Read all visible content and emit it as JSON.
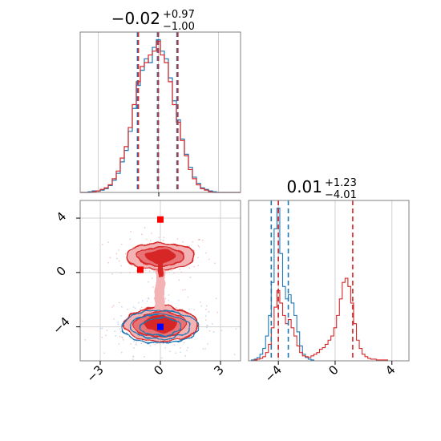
{
  "colors": {
    "blue": "#1f77b4",
    "red": "#d62728",
    "red_light": "#f0a3a4",
    "red_mid": "#e36163",
    "red_dark": "#d62728",
    "blue_light": "#c6dbef",
    "grid": "#d0d0d0",
    "frame": "#808080"
  },
  "chart_data": {
    "type": "corner",
    "grid": true,
    "panels": [
      {
        "id": "marginal-x",
        "type": "histogram",
        "title": {
          "value": "−0.02",
          "upper": "+0.97",
          "lower": "−1.00"
        },
        "xlim": [
          -3.9,
          4.1
        ],
        "series": [
          {
            "name": "",
            "color": "#1f77b4",
            "bin_start": -3.9,
            "bin_width": 0.2,
            "values": [
              0,
              0,
              1,
              2,
              2,
              3,
              5,
              9,
              16,
              25,
              40,
              55,
              80,
              110,
              140,
              160,
              175,
              170,
              190,
              200,
              185,
              175,
              150,
              120,
              95,
              70,
              50,
              33,
              20,
              12,
              6,
              4,
              2,
              1,
              0,
              0,
              0,
              0,
              0,
              0
            ]
          },
          {
            "name": "",
            "color": "#d62728",
            "bin_start": -3.9,
            "bin_width": 0.2,
            "values": [
              0,
              0,
              0,
              1,
              2,
              4,
              6,
              10,
              18,
              28,
              45,
              60,
              85,
              115,
              145,
              165,
              170,
              180,
              185,
              198,
              180,
              170,
              145,
              115,
              92,
              68,
              48,
              30,
              18,
              10,
              5,
              3,
              1,
              0,
              0,
              0,
              0,
              0,
              0,
              0
            ]
          }
        ],
        "quantiles": {
          "values": [
            -1.02,
            -0.02,
            0.95
          ],
          "colors": [
            "#1f77b4",
            "#d62728"
          ]
        }
      },
      {
        "id": "marginal-y",
        "type": "histogram",
        "title": {
          "value": "0.01",
          "upper": "+1.23",
          "lower": "−4.01"
        },
        "xlim": [
          -6.1,
          5.2
        ],
        "xticks": [
          -4,
          0,
          4
        ],
        "xticklabels": [
          "−4",
          "0",
          "4"
        ],
        "series": [
          {
            "name": "",
            "color": "#1f77b4",
            "bin_start": -6.1,
            "bin_width": 0.2,
            "values": [
              0,
              1,
              2,
              4,
              8,
              15,
              30,
              55,
              95,
              160,
              185,
              130,
              90,
              75,
              80,
              70,
              55,
              35,
              18,
              8,
              4,
              2,
              1,
              0,
              0,
              0,
              0,
              0,
              0,
              0,
              0,
              0,
              0,
              0,
              0,
              0,
              0,
              0,
              0,
              0,
              0,
              0,
              0,
              0,
              0,
              0,
              0,
              0,
              0,
              0,
              0,
              0,
              0,
              0,
              0,
              0
            ]
          },
          {
            "name": "",
            "color": "#d62728",
            "bin_start": -6.1,
            "bin_width": 0.2,
            "values": [
              0,
              0,
              1,
              2,
              3,
              5,
              10,
              20,
              40,
              65,
              85,
              70,
              55,
              45,
              50,
              40,
              30,
              18,
              10,
              6,
              5,
              4,
              6,
              8,
              10,
              14,
              16,
              20,
              25,
              30,
              40,
              55,
              75,
              95,
              100,
              90,
              70,
              45,
              25,
              15,
              8,
              5,
              3,
              2,
              2,
              1,
              1,
              1,
              1,
              0,
              0,
              0,
              0,
              0,
              0,
              0
            ]
          }
        ],
        "quantiles": [
          {
            "color": "#1f77b4",
            "values": [
              -4.5,
              -4.0,
              -3.3
            ]
          },
          {
            "color": "#d62728",
            "values": [
              -4.0,
              1.24
            ]
          }
        ]
      },
      {
        "id": "joint",
        "type": "contour",
        "xlim": [
          -4.0,
          4.0
        ],
        "ylim": [
          -6.5,
          5.3
        ],
        "xticks": [
          -3,
          0,
          3
        ],
        "xticklabels": [
          "−3",
          "0",
          "3"
        ],
        "yticks": [
          -4,
          0,
          4
        ],
        "yticklabels": [
          "−4",
          "0",
          "4"
        ],
        "red_components": [
          {
            "cx": 0,
            "cy": 1.2,
            "rx": 1.7,
            "ry": 1.0,
            "weight": 0.55
          },
          {
            "cx": 0,
            "cy": -3.8,
            "rx": 1.8,
            "ry": 1.3,
            "weight": 0.45
          }
        ],
        "blue_components": [
          {
            "cx": 0,
            "cy": -4.0,
            "rx": 1.9,
            "ry": 1.2,
            "weight": 1.0
          }
        ],
        "markers": [
          {
            "x": 0,
            "y": 3.9,
            "color": "#ff0000"
          },
          {
            "x": -1.0,
            "y": 0.2,
            "color": "#ff0000"
          },
          {
            "x": 0,
            "y": -4.0,
            "color": "#0000ff"
          }
        ]
      }
    ]
  }
}
